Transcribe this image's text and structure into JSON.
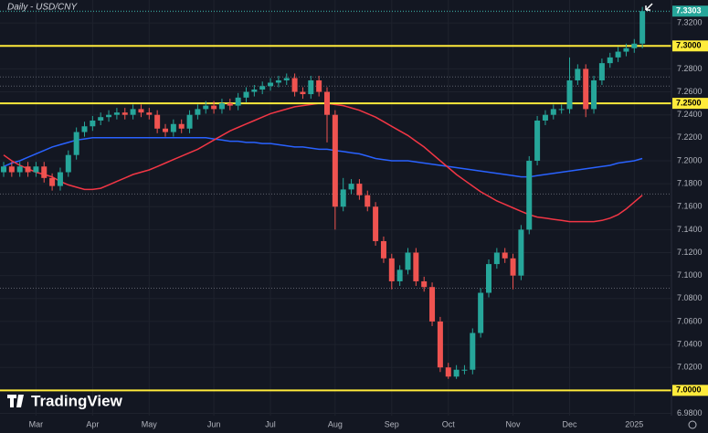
{
  "chart_data": {
    "type": "candlestick",
    "title": "Daily - USD/CNY",
    "watermark": "TradingView",
    "categories": [
      null,
      null,
      null,
      null,
      "Mar",
      null,
      null,
      null,
      null,
      null,
      null,
      "Apr",
      null,
      null,
      null,
      null,
      null,
      null,
      "May",
      null,
      null,
      null,
      null,
      null,
      null,
      null,
      "Jun",
      null,
      null,
      null,
      null,
      null,
      null,
      "Jul",
      null,
      null,
      null,
      null,
      null,
      null,
      null,
      "Aug",
      null,
      null,
      null,
      null,
      null,
      null,
      "Sep",
      null,
      null,
      null,
      null,
      null,
      null,
      "Oct",
      null,
      null,
      null,
      null,
      null,
      null,
      null,
      "Nov",
      null,
      null,
      null,
      null,
      null,
      null,
      "Dec",
      null,
      null,
      null,
      null,
      null,
      null,
      null,
      "2025",
      null
    ],
    "open": [
      7.19,
      7.195,
      7.19,
      7.195,
      7.19,
      7.195,
      7.185,
      7.178,
      7.19,
      7.205,
      7.225,
      7.23,
      7.235,
      7.238,
      7.24,
      7.242,
      7.24,
      7.245,
      7.242,
      7.24,
      7.228,
      7.225,
      7.232,
      7.228,
      7.24,
      7.245,
      7.248,
      7.245,
      7.25,
      7.248,
      7.255,
      7.26,
      7.262,
      7.265,
      7.268,
      7.27,
      7.272,
      7.26,
      7.258,
      7.27,
      7.26,
      7.24,
      7.16,
      7.175,
      7.18,
      7.17,
      7.16,
      7.13,
      7.115,
      7.095,
      7.105,
      7.12,
      7.095,
      7.09,
      7.06,
      7.02,
      7.012,
      7.018,
      7.018,
      7.05,
      7.085,
      7.11,
      7.12,
      7.115,
      7.1,
      7.14,
      7.2,
      7.235,
      7.24,
      7.245,
      7.245,
      7.27,
      7.28,
      7.245,
      7.27,
      7.285,
      7.29,
      7.295,
      7.298,
      7.302
    ],
    "high": [
      7.199,
      7.199,
      7.199,
      7.199,
      7.199,
      7.199,
      7.189,
      7.194,
      7.209,
      7.229,
      7.234,
      7.239,
      7.242,
      7.244,
      7.246,
      7.246,
      7.249,
      7.249,
      7.246,
      7.244,
      7.232,
      7.236,
      7.236,
      7.244,
      7.249,
      7.252,
      7.252,
      7.254,
      7.254,
      7.259,
      7.264,
      7.266,
      7.269,
      7.272,
      7.274,
      7.276,
      7.276,
      7.264,
      7.274,
      7.274,
      7.264,
      7.244,
      7.185,
      7.184,
      7.184,
      7.174,
      7.164,
      7.134,
      7.119,
      7.109,
      7.124,
      7.124,
      7.099,
      7.094,
      7.064,
      7.024,
      7.022,
      7.022,
      7.054,
      7.089,
      7.114,
      7.124,
      7.124,
      7.119,
      7.144,
      7.204,
      7.239,
      7.244,
      7.249,
      7.249,
      7.29,
      7.284,
      7.284,
      7.274,
      7.289,
      7.294,
      7.299,
      7.302,
      7.306,
      7.334
    ],
    "low": [
      7.186,
      7.186,
      7.186,
      7.186,
      7.186,
      7.181,
      7.174,
      7.174,
      7.186,
      7.201,
      7.221,
      7.226,
      7.231,
      7.234,
      7.236,
      7.236,
      7.236,
      7.238,
      7.236,
      7.224,
      7.221,
      7.221,
      7.224,
      7.224,
      7.236,
      7.241,
      7.241,
      7.241,
      7.244,
      7.244,
      7.251,
      7.256,
      7.258,
      7.261,
      7.264,
      7.266,
      7.256,
      7.254,
      7.254,
      7.256,
      7.216,
      7.14,
      7.156,
      7.171,
      7.166,
      7.156,
      7.126,
      7.111,
      7.088,
      7.091,
      7.101,
      7.091,
      7.086,
      7.056,
      7.016,
      7.01,
      7.01,
      7.014,
      7.014,
      7.046,
      7.081,
      7.106,
      7.111,
      7.088,
      7.096,
      7.136,
      7.196,
      7.231,
      7.236,
      7.241,
      7.241,
      7.266,
      7.238,
      7.241,
      7.266,
      7.281,
      7.286,
      7.291,
      7.294,
      7.298
    ],
    "close": [
      7.195,
      7.19,
      7.195,
      7.19,
      7.195,
      7.185,
      7.178,
      7.19,
      7.205,
      7.225,
      7.23,
      7.235,
      7.238,
      7.24,
      7.242,
      7.24,
      7.245,
      7.242,
      7.24,
      7.228,
      7.225,
      7.232,
      7.228,
      7.24,
      7.245,
      7.248,
      7.245,
      7.25,
      7.248,
      7.255,
      7.26,
      7.262,
      7.265,
      7.268,
      7.27,
      7.272,
      7.26,
      7.258,
      7.27,
      7.26,
      7.24,
      7.16,
      7.175,
      7.18,
      7.17,
      7.16,
      7.13,
      7.115,
      7.095,
      7.105,
      7.12,
      7.095,
      7.09,
      7.06,
      7.02,
      7.012,
      7.018,
      7.018,
      7.05,
      7.085,
      7.11,
      7.12,
      7.115,
      7.1,
      7.14,
      7.2,
      7.235,
      7.24,
      7.245,
      7.245,
      7.27,
      7.28,
      7.245,
      7.27,
      7.285,
      7.29,
      7.295,
      7.298,
      7.302,
      7.3303
    ],
    "up_color": "#26a69a",
    "down_color": "#ef5350",
    "ma_lines": [
      {
        "color": "#2962ff",
        "values": [
          7.195,
          7.198,
          7.2,
          7.203,
          7.206,
          7.209,
          7.212,
          7.214,
          7.216,
          7.218,
          7.219,
          7.22,
          7.22,
          7.22,
          7.22,
          7.22,
          7.22,
          7.22,
          7.22,
          7.22,
          7.22,
          7.22,
          7.22,
          7.22,
          7.22,
          7.22,
          7.219,
          7.218,
          7.217,
          7.217,
          7.216,
          7.216,
          7.215,
          7.215,
          7.214,
          7.213,
          7.212,
          7.212,
          7.211,
          7.21,
          7.21,
          7.209,
          7.208,
          7.207,
          7.206,
          7.204,
          7.202,
          7.201,
          7.2,
          7.2,
          7.2,
          7.199,
          7.198,
          7.197,
          7.196,
          7.195,
          7.194,
          7.193,
          7.192,
          7.191,
          7.19,
          7.189,
          7.188,
          7.187,
          7.186,
          7.186,
          7.187,
          7.188,
          7.189,
          7.19,
          7.191,
          7.192,
          7.193,
          7.194,
          7.195,
          7.196,
          7.198,
          7.199,
          7.2,
          7.202
        ]
      },
      {
        "color": "#f23645",
        "values": [
          7.205,
          7.2,
          7.196,
          7.193,
          7.19,
          7.188,
          7.186,
          7.182,
          7.179,
          7.177,
          7.175,
          7.175,
          7.176,
          7.179,
          7.182,
          7.185,
          7.188,
          7.19,
          7.192,
          7.195,
          7.198,
          7.201,
          7.204,
          7.207,
          7.21,
          7.214,
          7.218,
          7.222,
          7.226,
          7.229,
          7.232,
          7.235,
          7.238,
          7.241,
          7.243,
          7.245,
          7.247,
          7.248,
          7.249,
          7.25,
          7.25,
          7.249,
          7.248,
          7.246,
          7.244,
          7.241,
          7.238,
          7.234,
          7.23,
          7.226,
          7.222,
          7.217,
          7.212,
          7.206,
          7.2,
          7.194,
          7.188,
          7.183,
          7.178,
          7.173,
          7.169,
          7.165,
          7.162,
          7.159,
          7.156,
          7.153,
          7.151,
          7.15,
          7.149,
          7.148,
          7.147,
          7.147,
          7.147,
          7.147,
          7.148,
          7.15,
          7.153,
          7.158,
          7.164,
          7.17
        ]
      }
    ],
    "key_levels": [
      {
        "value": 7.3,
        "label": "7.3000"
      },
      {
        "value": 7.25,
        "label": "7.2500"
      },
      {
        "value": 7.0,
        "label": "7.0000"
      }
    ],
    "key_level_color": "#ffeb3b",
    "dotted_levels": [
      7.33,
      7.273,
      7.265,
      7.171,
      7.089
    ],
    "last_price": {
      "value": 7.3303,
      "label": "7.3303"
    },
    "ylim": [
      6.978,
      7.34
    ],
    "yticks": [
      {
        "value": 6.98,
        "label": "6.9800"
      },
      {
        "value": 7.0,
        "label": "7.0000"
      },
      {
        "value": 7.02,
        "label": "7.0200"
      },
      {
        "value": 7.04,
        "label": "7.0400"
      },
      {
        "value": 7.06,
        "label": "7.0600"
      },
      {
        "value": 7.08,
        "label": "7.0800"
      },
      {
        "value": 7.1,
        "label": "7.1000"
      },
      {
        "value": 7.12,
        "label": "7.1200"
      },
      {
        "value": 7.14,
        "label": "7.1400"
      },
      {
        "value": 7.16,
        "label": "7.1600"
      },
      {
        "value": 7.18,
        "label": "7.1800"
      },
      {
        "value": 7.2,
        "label": "7.2000"
      },
      {
        "value": 7.22,
        "label": "7.2200"
      },
      {
        "value": 7.24,
        "label": "7.2400"
      },
      {
        "value": 7.26,
        "label": "7.2600"
      },
      {
        "value": 7.28,
        "label": "7.2800"
      },
      {
        "value": 7.3,
        "label": "7.3000"
      },
      {
        "value": 7.32,
        "label": "7.3200"
      }
    ],
    "grid": true
  }
}
